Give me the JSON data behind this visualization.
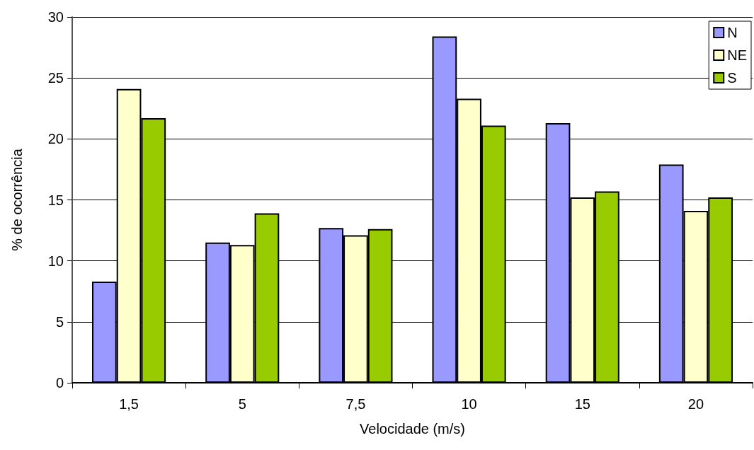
{
  "chart_data": {
    "type": "bar",
    "xlabel": "Velocidade (m/s)",
    "ylabel": "% de ocorrência",
    "categories": [
      "1,5",
      "5",
      "7,5",
      "10",
      "15",
      "20"
    ],
    "series": [
      {
        "name": "N",
        "color": "#9999ff",
        "values": [
          8.3,
          11.5,
          12.7,
          28.4,
          21.3,
          17.9
        ]
      },
      {
        "name": "NE",
        "color": "#ffffcc",
        "values": [
          24.1,
          11.3,
          12.1,
          23.3,
          15.2,
          14.1
        ]
      },
      {
        "name": "S",
        "color": "#99cc00",
        "values": [
          21.7,
          13.9,
          12.6,
          21.1,
          15.7,
          15.2
        ]
      }
    ],
    "ylim": [
      0,
      30
    ],
    "yticks": [
      0,
      5,
      10,
      15,
      20,
      25,
      30
    ],
    "grid": "y",
    "legend": "top right"
  }
}
